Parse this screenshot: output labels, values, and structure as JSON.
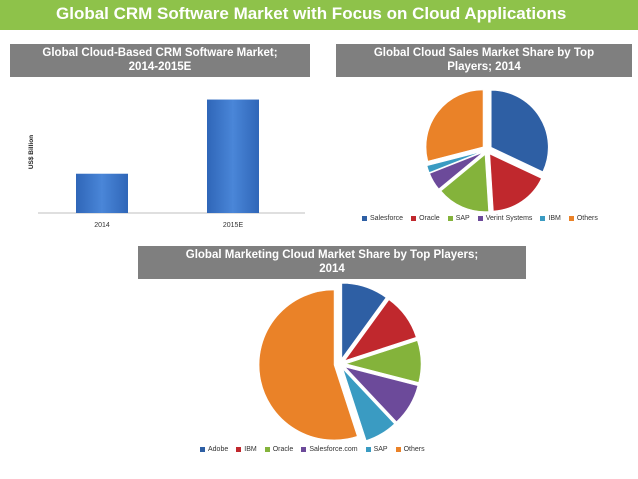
{
  "banner": {
    "title": "Global CRM Software Market with Focus on Cloud Applications",
    "bg_color": "#8ec24a"
  },
  "chart_data": [
    {
      "type": "bar",
      "title": "Global Cloud-Based CRM Software Market; 2014-2015E",
      "title_line1": "Global Cloud-Based CRM Software Market;",
      "title_line2": "2014-2015E",
      "ylabel": "US$ Billion",
      "xlabel": "",
      "categories": [
        "2014",
        "2015E"
      ],
      "values": [
        36,
        104
      ],
      "ylim": [
        0,
        110
      ],
      "color": "#3874c8",
      "grid": false
    },
    {
      "type": "pie",
      "title": "Global Cloud Sales Market Share by Top Players; 2014",
      "title_line1": "Global Cloud Sales Market Share by Top",
      "title_line2": "Players; 2014",
      "legend_position": "bottom",
      "labels": [
        "Salesforce",
        "Oracle",
        "SAP",
        "Verint Systems",
        "IBM",
        "Others"
      ],
      "values": [
        32,
        17,
        15,
        5,
        2,
        29
      ],
      "colors": [
        "#2e5fa4",
        "#c0282d",
        "#84b33b",
        "#6c4a9a",
        "#3a9bc2",
        "#ea8228"
      ]
    },
    {
      "type": "pie",
      "title": "Global Marketing Cloud Market Share by Top Players; 2014",
      "title_line1": "Global Marketing Cloud Market Share by Top Players;",
      "title_line2": "2014",
      "legend_position": "bottom",
      "labels": [
        "Adobe",
        "IBM",
        "Oracle",
        "Salesforce.com",
        "SAP",
        "Others"
      ],
      "values": [
        10,
        10,
        9,
        9,
        7,
        55
      ],
      "colors": [
        "#2e5fa4",
        "#c0282d",
        "#84b33b",
        "#6c4a9a",
        "#3a9bc2",
        "#ea8228"
      ]
    }
  ]
}
